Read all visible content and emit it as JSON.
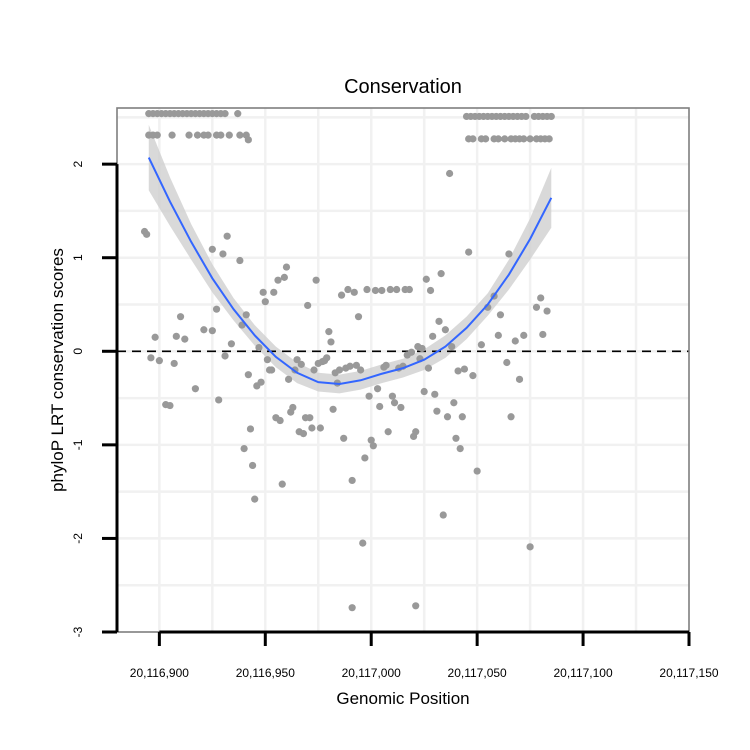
{
  "chart_data": {
    "type": "scatter",
    "title": "Conservation",
    "xlabel": "Genomic Position",
    "ylabel": "phyloP LRT conservation scores",
    "xlim": [
      20116880,
      20117150
    ],
    "ylim": [
      -3,
      2.6
    ],
    "xticks": [
      20116900,
      20116950,
      20117000,
      20117050,
      20117100,
      20117150
    ],
    "xtick_labels": [
      "20,116,900",
      "20,116,950",
      "20,117,000",
      "20,117,050",
      "20,117,100",
      "20,117,150"
    ],
    "yticks": [
      -3,
      -2,
      -1,
      0,
      1,
      2
    ],
    "ytick_labels": [
      "-3",
      "-2",
      "-1",
      "0",
      "1",
      "2"
    ],
    "reference_line": {
      "y": 0,
      "style": "dashed"
    },
    "grid": true,
    "colors": {
      "points": "#999999",
      "smooth": "#3366ff",
      "band": "#cccccc",
      "background": "#ffffff",
      "grid": "#f1f1f1",
      "border": "#7f7f7f"
    },
    "points": [
      [
        20116895,
        2.54
      ],
      [
        20116897,
        2.54
      ],
      [
        20116899,
        2.54
      ],
      [
        20116901,
        2.54
      ],
      [
        20116903,
        2.54
      ],
      [
        20116905,
        2.54
      ],
      [
        20116907,
        2.54
      ],
      [
        20116909,
        2.54
      ],
      [
        20116911,
        2.54
      ],
      [
        20116913,
        2.54
      ],
      [
        20116915,
        2.54
      ],
      [
        20116917,
        2.54
      ],
      [
        20116919,
        2.54
      ],
      [
        20116921,
        2.54
      ],
      [
        20116923,
        2.54
      ],
      [
        20116925,
        2.54
      ],
      [
        20116927,
        2.54
      ],
      [
        20116929,
        2.54
      ],
      [
        20116931,
        2.54
      ],
      [
        20116937,
        2.54
      ],
      [
        20116895,
        2.31
      ],
      [
        20116897,
        2.31
      ],
      [
        20116899,
        2.31
      ],
      [
        20116906,
        2.31
      ],
      [
        20116914,
        2.31
      ],
      [
        20116918,
        2.31
      ],
      [
        20116921,
        2.31
      ],
      [
        20116923,
        2.31
      ],
      [
        20116927,
        2.31
      ],
      [
        20116929,
        2.31
      ],
      [
        20116933,
        2.31
      ],
      [
        20116938,
        2.31
      ],
      [
        20116941,
        2.31
      ],
      [
        20116942,
        2.26
      ],
      [
        20116893,
        1.28
      ],
      [
        20116894,
        1.25
      ],
      [
        20116896,
        -0.07
      ],
      [
        20116898,
        0.15
      ],
      [
        20116900,
        -0.1
      ],
      [
        20116903,
        -0.57
      ],
      [
        20116905,
        -0.58
      ],
      [
        20116907,
        -0.13
      ],
      [
        20116908,
        0.16
      ],
      [
        20116910,
        0.37
      ],
      [
        20116912,
        0.13
      ],
      [
        20116917,
        -0.4
      ],
      [
        20116921,
        0.23
      ],
      [
        20116925,
        1.09
      ],
      [
        20116925,
        0.22
      ],
      [
        20116927,
        0.45
      ],
      [
        20116928,
        -0.52
      ],
      [
        20116930,
        1.04
      ],
      [
        20116931,
        -0.05
      ],
      [
        20116932,
        1.23
      ],
      [
        20116934,
        0.08
      ],
      [
        20116938,
        0.97
      ],
      [
        20116939,
        0.28
      ],
      [
        20116940,
        -1.04
      ],
      [
        20116941,
        0.39
      ],
      [
        20116942,
        -0.25
      ],
      [
        20116943,
        -0.83
      ],
      [
        20116944,
        -1.22
      ],
      [
        20116945,
        -1.58
      ],
      [
        20116946,
        -0.37
      ],
      [
        20116947,
        0.04
      ],
      [
        20116948,
        -0.33
      ],
      [
        20116949,
        0.63
      ],
      [
        20116950,
        0.53
      ],
      [
        20116951,
        -0.09
      ],
      [
        20116952,
        -0.2
      ],
      [
        20116953,
        -0.2
      ],
      [
        20116954,
        0.63
      ],
      [
        20116955,
        -0.71
      ],
      [
        20116956,
        0.76
      ],
      [
        20116957,
        -0.74
      ],
      [
        20116958,
        -1.42
      ],
      [
        20116959,
        0.79
      ],
      [
        20116960,
        0.9
      ],
      [
        20116961,
        -0.3
      ],
      [
        20116962,
        -0.65
      ],
      [
        20116963,
        -0.6
      ],
      [
        20116964,
        -0.2
      ],
      [
        20116965,
        -0.09
      ],
      [
        20116966,
        -0.86
      ],
      [
        20116967,
        -0.14
      ],
      [
        20116968,
        -0.88
      ],
      [
        20116969,
        -0.71
      ],
      [
        20116970,
        0.49
      ],
      [
        20116971,
        -0.71
      ],
      [
        20116972,
        -0.82
      ],
      [
        20116973,
        -0.2
      ],
      [
        20116974,
        0.76
      ],
      [
        20116975,
        -0.13
      ],
      [
        20116976,
        -0.82
      ],
      [
        20116977,
        -0.11
      ],
      [
        20116978,
        -0.1
      ],
      [
        20116979,
        -0.07
      ],
      [
        20116980,
        0.21
      ],
      [
        20116981,
        0.1
      ],
      [
        20116982,
        -0.62
      ],
      [
        20116983,
        -0.23
      ],
      [
        20116984,
        -0.34
      ],
      [
        20116985,
        -0.2
      ],
      [
        20116986,
        0.6
      ],
      [
        20116987,
        -0.93
      ],
      [
        20116988,
        -0.18
      ],
      [
        20116989,
        0.66
      ],
      [
        20116990,
        -0.16
      ],
      [
        20116991,
        -1.38
      ],
      [
        20116991,
        -2.74
      ],
      [
        20116992,
        0.63
      ],
      [
        20116993,
        -0.15
      ],
      [
        20116994,
        0.37
      ],
      [
        20116995,
        -0.2
      ],
      [
        20116996,
        -2.05
      ],
      [
        20116997,
        -1.14
      ],
      [
        20116998,
        0.66
      ],
      [
        20116999,
        -0.48
      ],
      [
        20117000,
        -0.95
      ],
      [
        20117001,
        -1.01
      ],
      [
        20117002,
        0.65
      ],
      [
        20117003,
        -0.4
      ],
      [
        20117004,
        -0.59
      ],
      [
        20117005,
        0.65
      ],
      [
        20117006,
        -0.17
      ],
      [
        20117007,
        -0.15
      ],
      [
        20117008,
        -0.86
      ],
      [
        20117009,
        0.66
      ],
      [
        20117010,
        -0.48
      ],
      [
        20117011,
        -0.55
      ],
      [
        20117012,
        0.66
      ],
      [
        20117013,
        -0.18
      ],
      [
        20117014,
        -0.6
      ],
      [
        20117015,
        -0.16
      ],
      [
        20117016,
        0.66
      ],
      [
        20117017,
        -0.04
      ],
      [
        20117018,
        0.66
      ],
      [
        20117019,
        -0.01
      ],
      [
        20117020,
        -0.91
      ],
      [
        20117021,
        -0.86
      ],
      [
        20117021,
        -2.72
      ],
      [
        20117022,
        0.05
      ],
      [
        20117023,
        -0.08
      ],
      [
        20117024,
        0.03
      ],
      [
        20117025,
        -0.43
      ],
      [
        20117026,
        0.77
      ],
      [
        20117027,
        -0.18
      ],
      [
        20117028,
        0.65
      ],
      [
        20117029,
        0.16
      ],
      [
        20117030,
        -0.46
      ],
      [
        20117031,
        -0.64
      ],
      [
        20117032,
        0.32
      ],
      [
        20117033,
        0.83
      ],
      [
        20117034,
        -1.75
      ],
      [
        20117035,
        0.23
      ],
      [
        20117036,
        -0.7
      ],
      [
        20117037,
        1.9
      ],
      [
        20117038,
        0.05
      ],
      [
        20117039,
        -0.55
      ],
      [
        20117040,
        -0.93
      ],
      [
        20117041,
        -0.21
      ],
      [
        20117042,
        -1.04
      ],
      [
        20117043,
        -0.7
      ],
      [
        20117044,
        -0.19
      ],
      [
        20117046,
        1.06
      ],
      [
        20117048,
        -0.26
      ],
      [
        20117050,
        -1.28
      ],
      [
        20117052,
        0.07
      ],
      [
        20117055,
        0.47
      ],
      [
        20117058,
        0.59
      ],
      [
        20117060,
        0.17
      ],
      [
        20117061,
        0.39
      ],
      [
        20117064,
        -0.12
      ],
      [
        20117065,
        1.04
      ],
      [
        20117066,
        -0.7
      ],
      [
        20117068,
        0.11
      ],
      [
        20117070,
        -0.3
      ],
      [
        20117072,
        0.17
      ],
      [
        20117075,
        -2.09
      ],
      [
        20117078,
        0.47
      ],
      [
        20117080,
        0.57
      ],
      [
        20117081,
        0.18
      ],
      [
        20117083,
        0.43
      ],
      [
        20117045,
        2.51
      ],
      [
        20117047,
        2.51
      ],
      [
        20117049,
        2.51
      ],
      [
        20117051,
        2.51
      ],
      [
        20117053,
        2.51
      ],
      [
        20117055,
        2.51
      ],
      [
        20117057,
        2.51
      ],
      [
        20117059,
        2.51
      ],
      [
        20117061,
        2.51
      ],
      [
        20117063,
        2.51
      ],
      [
        20117065,
        2.51
      ],
      [
        20117067,
        2.51
      ],
      [
        20117069,
        2.51
      ],
      [
        20117071,
        2.51
      ],
      [
        20117073,
        2.51
      ],
      [
        20117077,
        2.51
      ],
      [
        20117079,
        2.51
      ],
      [
        20117081,
        2.51
      ],
      [
        20117083,
        2.51
      ],
      [
        20117085,
        2.51
      ],
      [
        20117046,
        2.27
      ],
      [
        20117048,
        2.27
      ],
      [
        20117052,
        2.27
      ],
      [
        20117054,
        2.27
      ],
      [
        20117058,
        2.27
      ],
      [
        20117060,
        2.27
      ],
      [
        20117063,
        2.27
      ],
      [
        20117066,
        2.27
      ],
      [
        20117068,
        2.27
      ],
      [
        20117070,
        2.27
      ],
      [
        20117072,
        2.27
      ],
      [
        20117075,
        2.27
      ],
      [
        20117078,
        2.27
      ],
      [
        20117080,
        2.27
      ],
      [
        20117082,
        2.27
      ],
      [
        20117084,
        2.27
      ]
    ],
    "smooth_line": {
      "x": [
        20116895,
        20116905,
        20116915,
        20116925,
        20116935,
        20116945,
        20116955,
        20116965,
        20116975,
        20116985,
        20116995,
        20117005,
        20117015,
        20117025,
        20117035,
        20117045,
        20117055,
        20117065,
        20117075,
        20117085
      ],
      "y": [
        2.07,
        1.6,
        1.17,
        0.78,
        0.45,
        0.17,
        -0.06,
        -0.23,
        -0.33,
        -0.35,
        -0.31,
        -0.24,
        -0.18,
        -0.09,
        0.05,
        0.25,
        0.5,
        0.82,
        1.2,
        1.64
      ],
      "ci_low": [
        1.72,
        1.34,
        0.98,
        0.63,
        0.33,
        0.06,
        -0.17,
        -0.34,
        -0.43,
        -0.45,
        -0.41,
        -0.34,
        -0.28,
        -0.2,
        -0.07,
        0.13,
        0.38,
        0.66,
        0.98,
        1.32
      ],
      "ci_high": [
        2.42,
        1.86,
        1.36,
        0.93,
        0.57,
        0.28,
        0.05,
        -0.12,
        -0.23,
        -0.25,
        -0.21,
        -0.14,
        -0.08,
        0.02,
        0.17,
        0.37,
        0.62,
        0.98,
        1.42,
        1.96
      ]
    }
  }
}
